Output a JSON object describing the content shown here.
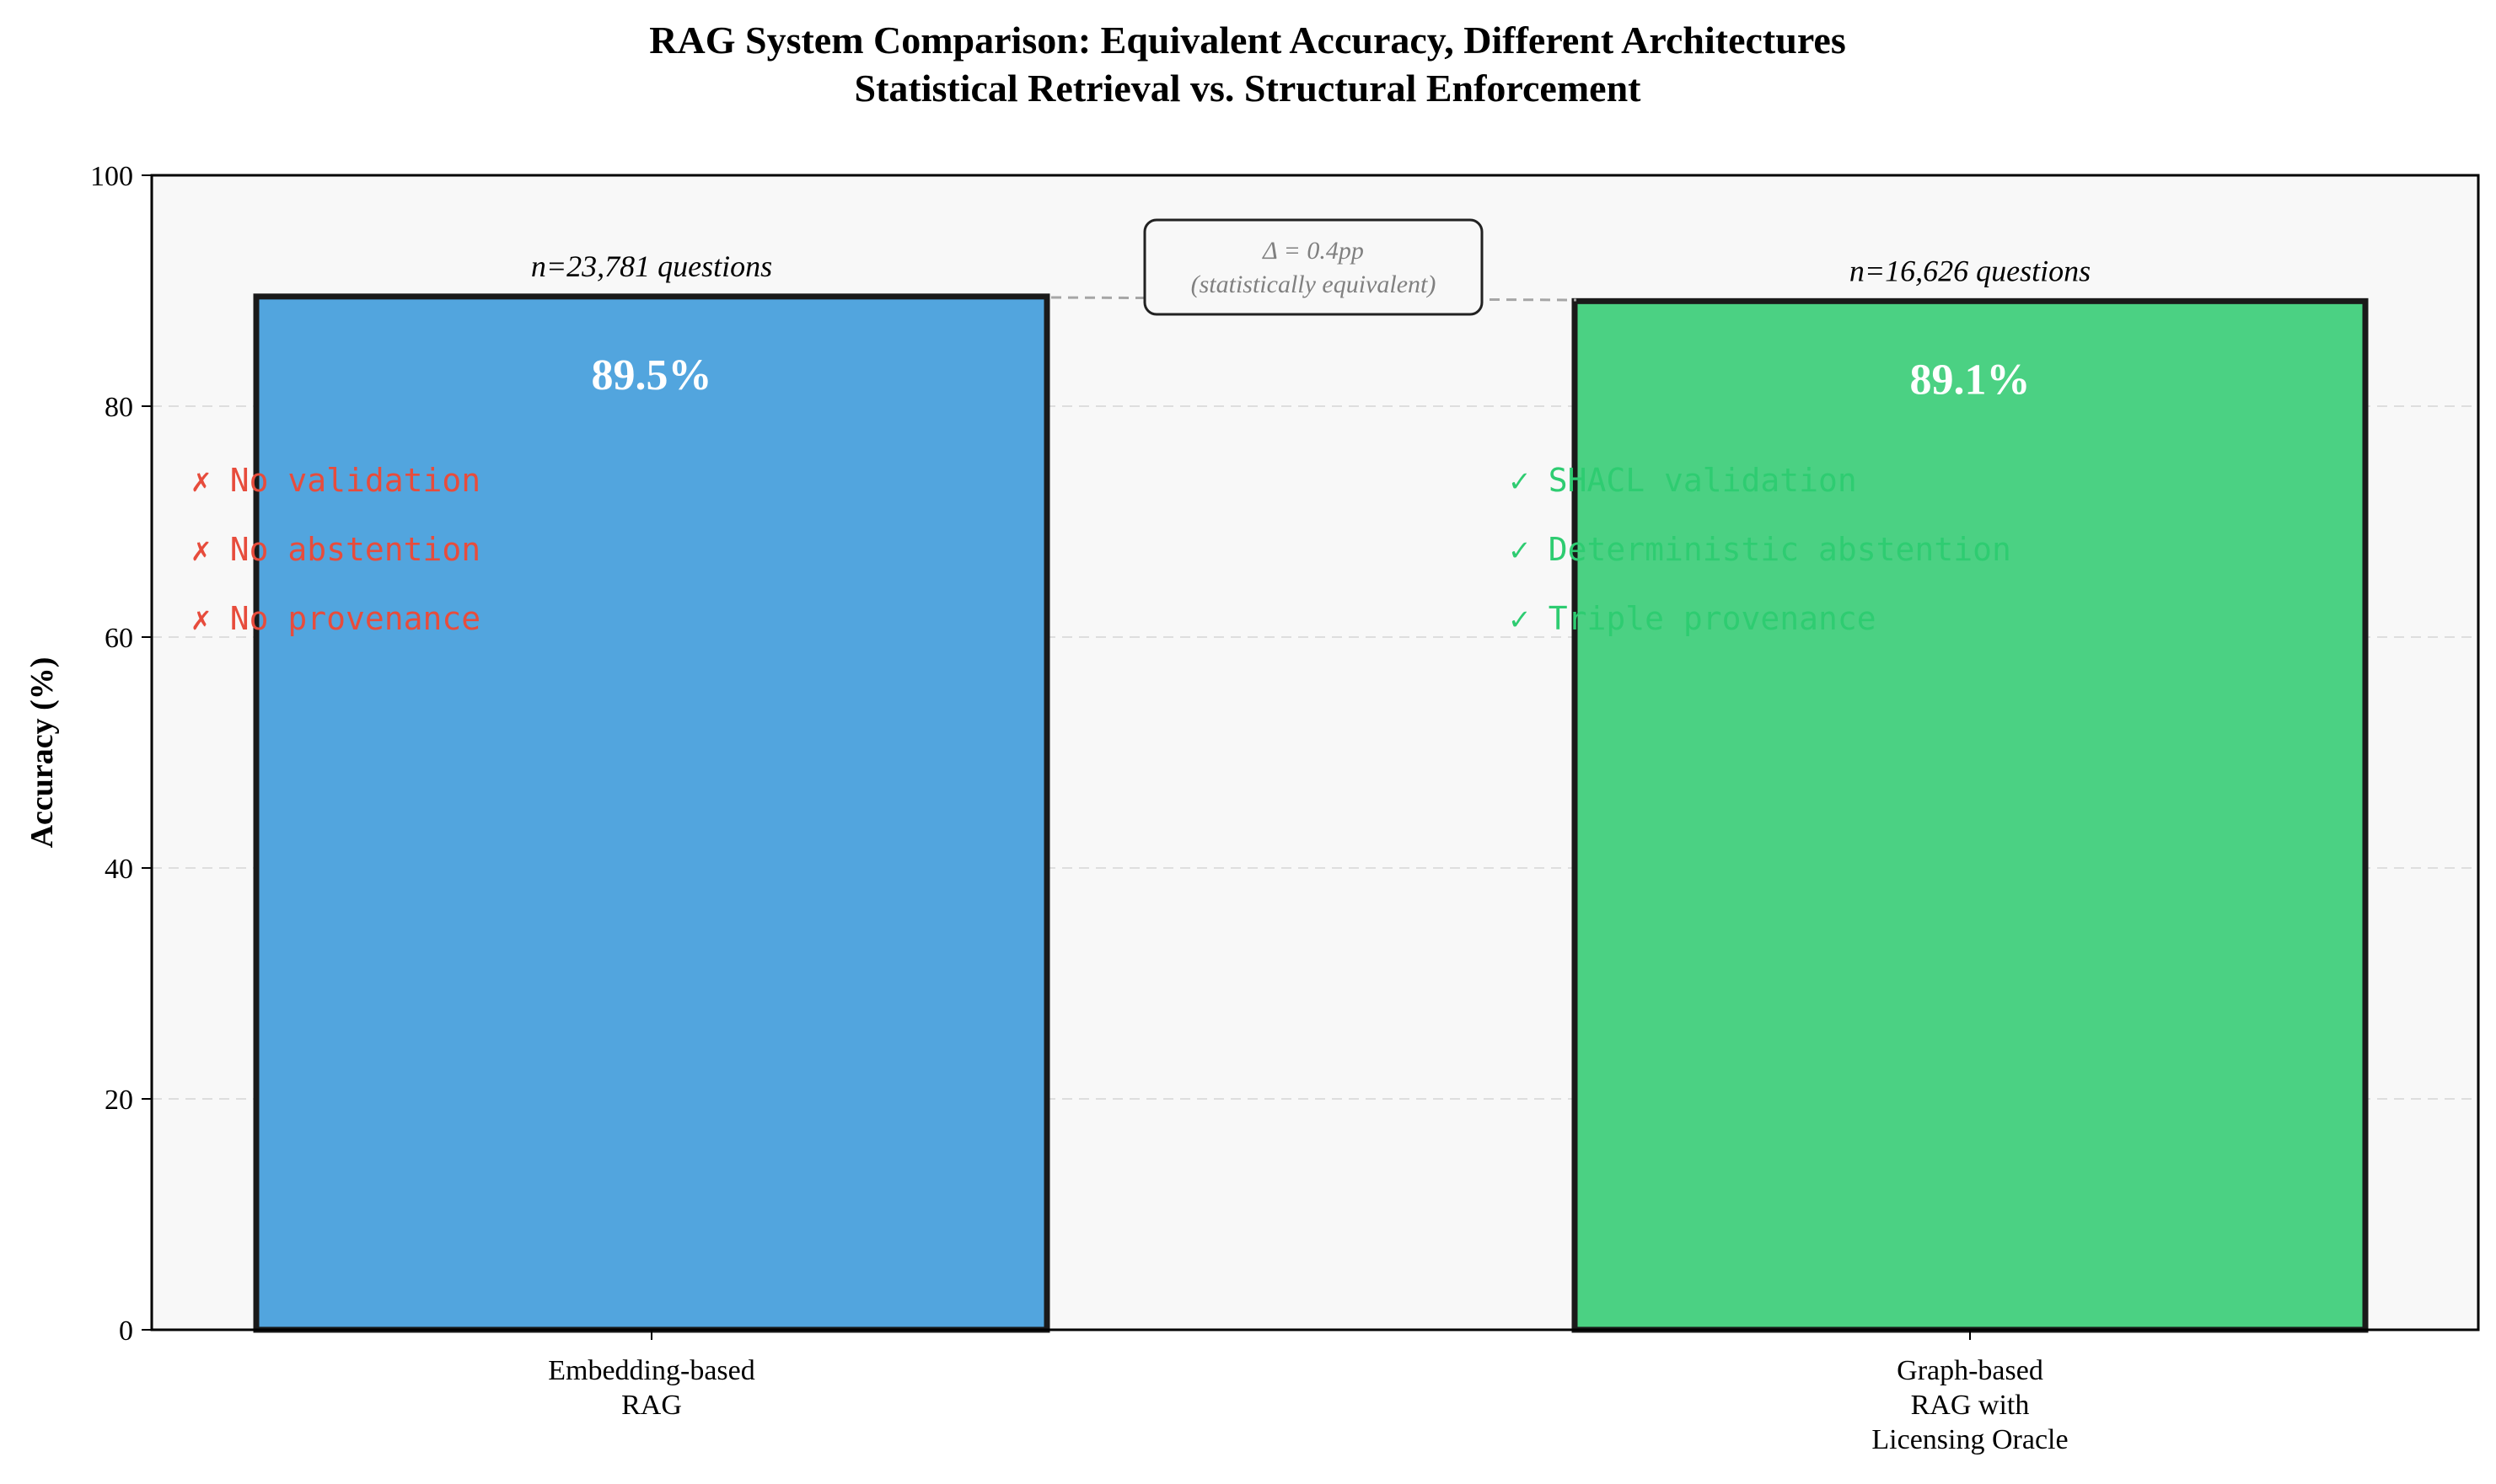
{
  "chart_data": {
    "type": "bar",
    "title": "RAG System Comparison: Equivalent Accuracy, Different Architectures",
    "subtitle": "Statistical Retrieval vs. Structural Enforcement",
    "xlabel": "",
    "ylabel": "Accuracy (%)",
    "ylim": [
      0,
      100
    ],
    "yticks": [
      "0",
      "20",
      "40",
      "60",
      "80",
      "100"
    ],
    "grid": "y dashed",
    "categories": [
      [
        "Embedding-based",
        "RAG"
      ],
      [
        "Graph-based",
        "RAG with",
        "Licensing Oracle"
      ]
    ],
    "values": [
      89.5,
      89.1
    ],
    "value_labels": [
      "89.5%",
      "89.1%"
    ],
    "sample_labels": [
      "n=23,781 questions",
      "n=16,626 questions"
    ],
    "bar_colors": [
      "#52a5de",
      "#4bd183"
    ],
    "features": [
      [
        "✗ No validation",
        "✗ No abstention",
        "✗ No provenance"
      ],
      [
        "✓ SHACL validation",
        "✓ Deterministic abstention",
        "✓ Triple provenance"
      ]
    ],
    "feature_colors": [
      "#e74c3c",
      "#2ecc71"
    ],
    "annotation": [
      "Δ = 0.4pp",
      "(statistically equivalent)"
    ],
    "plot_background": "#f8f8f8"
  }
}
